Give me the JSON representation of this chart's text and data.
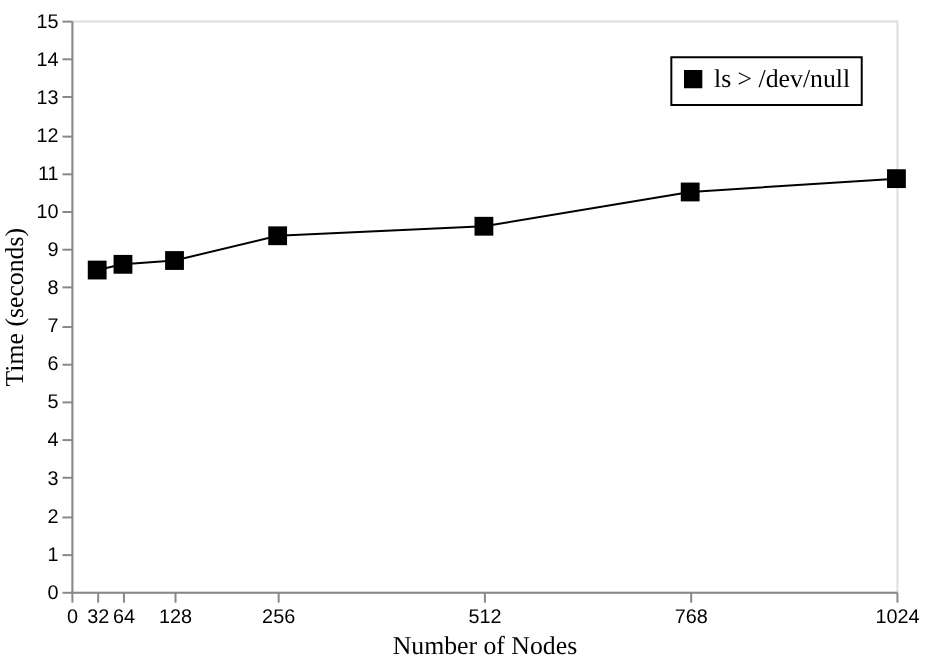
{
  "chart_data": {
    "type": "line",
    "xlabel": "Number of Nodes",
    "ylabel": "Time (seconds)",
    "x": [
      32,
      64,
      128,
      256,
      512,
      768,
      1024
    ],
    "series": [
      {
        "name": "ls > /dev/null",
        "color": "#000000",
        "values": [
          8.45,
          8.6,
          8.7,
          9.35,
          9.6,
          10.5,
          10.85
        ]
      }
    ],
    "xlim": [
      0,
      1024
    ],
    "xticks": [
      0,
      32,
      64,
      128,
      256,
      512,
      768,
      1024
    ],
    "ylim": [
      0,
      15
    ],
    "yticks": [
      0,
      1,
      2,
      3,
      4,
      5,
      6,
      7,
      8,
      9,
      10,
      11,
      12,
      13,
      14,
      15
    ],
    "marker": "square",
    "line_style": "solid",
    "legend": "top right",
    "grid": false
  }
}
